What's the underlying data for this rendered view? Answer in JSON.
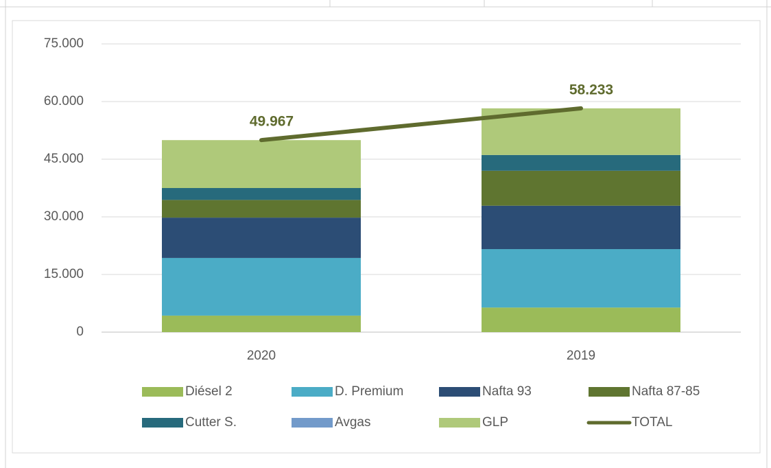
{
  "chart_data": {
    "type": "bar",
    "stacked": true,
    "categories": [
      "2020",
      "2019"
    ],
    "ylim": [
      0,
      75000
    ],
    "yticks": [
      0,
      {
        "value": 15000,
        "label": "15.000"
      },
      {
        "value": 30000,
        "label": "30.000"
      },
      {
        "value": 45000,
        "label": "45.000"
      },
      {
        "value": 60000,
        "label": "60.000"
      },
      {
        "value": 75000,
        "label": "75.000"
      }
    ],
    "grid": true,
    "series": [
      {
        "name": "Diésel 2",
        "color": "#9bbb59",
        "values": [
          4300,
          6400
        ]
      },
      {
        "name": "D. Premium",
        "color": "#4bacc6",
        "values": [
          15000,
          15200
        ]
      },
      {
        "name": "Nafta 93",
        "color": "#2c4d75",
        "values": [
          10500,
          11300
        ]
      },
      {
        "name": "Nafta 87-85",
        "color": "#5f7530",
        "values": [
          4600,
          9100
        ]
      },
      {
        "name": "Cutter S.",
        "color": "#276a7c",
        "values": [
          3100,
          4100
        ]
      },
      {
        "name": "Avgas",
        "color": "#729aca",
        "values": [
          0,
          0
        ]
      },
      {
        "name": "GLP",
        "color": "#afc97a",
        "values": [
          12467,
          12133
        ]
      },
      {
        "name": "TOTAL",
        "type": "line",
        "color": "#5f6b2e",
        "values": [
          49967,
          58233
        ],
        "value_labels": [
          "49.967",
          "58.233"
        ]
      }
    ]
  }
}
